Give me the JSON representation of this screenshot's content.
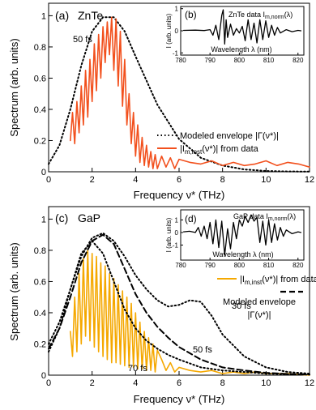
{
  "chart_data": [
    {
      "panel": "(a)",
      "material": "ZnTe",
      "type": "line",
      "xlabel": "Frequency ν* (THz)",
      "ylabel": "Spectrum (arb. units)",
      "xlim": [
        0,
        12
      ],
      "ylim": [
        0,
        1.08
      ],
      "xticks": [
        0,
        2,
        4,
        6,
        8,
        10,
        12
      ],
      "yticks": [
        0,
        0.2,
        0.4,
        0.6,
        0.8,
        1
      ],
      "grid": false,
      "legend_position": "center-right",
      "annotations": [
        "50 fs"
      ],
      "series": [
        {
          "name": "Modeled envelope |Γ(ν*)|",
          "style": "dotted",
          "color": "#000000",
          "x": [
            0,
            0.5,
            1,
            1.5,
            2,
            2.5,
            3,
            3.5,
            4,
            5,
            6,
            7,
            8,
            9,
            10,
            11,
            12
          ],
          "y": [
            0.05,
            0.17,
            0.4,
            0.68,
            0.9,
            0.99,
            0.99,
            0.9,
            0.74,
            0.43,
            0.21,
            0.09,
            0.04,
            0.015,
            0.005,
            0.002,
            0.001
          ]
        },
        {
          "name": "|I m,inst(ν*)| from data",
          "style": "solid",
          "color": "#f2501d",
          "x": [
            1,
            1.1,
            1.2,
            1.3,
            1.4,
            1.5,
            1.6,
            1.7,
            1.8,
            1.9,
            2,
            2.1,
            2.2,
            2.3,
            2.4,
            2.5,
            2.6,
            2.7,
            2.8,
            2.9,
            3,
            3.1,
            3.2,
            3.3,
            3.4,
            3.5,
            3.6,
            3.7,
            3.8,
            3.9,
            4,
            4.1,
            4.2,
            4.3,
            4.4,
            4.5,
            4.6,
            4.7,
            4.8,
            4.9,
            5,
            5.2,
            5.4,
            5.6,
            5.8,
            6,
            6.5,
            7,
            7.5,
            8,
            8.5,
            9,
            9.5,
            10,
            10.5,
            11,
            11.5,
            12
          ],
          "y": [
            0.2,
            0.38,
            0.18,
            0.45,
            0.25,
            0.55,
            0.3,
            0.65,
            0.35,
            0.72,
            0.45,
            0.82,
            0.52,
            0.88,
            0.6,
            0.93,
            0.7,
            0.96,
            0.75,
            0.99,
            0.65,
            0.98,
            0.55,
            0.9,
            0.42,
            0.72,
            0.3,
            0.5,
            0.18,
            0.38,
            0.1,
            0.3,
            0.06,
            0.22,
            0.04,
            0.17,
            0.03,
            0.13,
            0.02,
            0.11,
            0.02,
            0.1,
            0.03,
            0.09,
            0.02,
            0.08,
            0.06,
            0.05,
            0.07,
            0.04,
            0.06,
            0.04,
            0.05,
            0.07,
            0.04,
            0.06,
            0.05,
            0.03
          ]
        }
      ]
    },
    {
      "panel": "(b)",
      "type": "line",
      "inset": true,
      "title": "ZnTe data I m,norm(λ)",
      "xlabel": "Wavelength λ (nm)",
      "ylabel": "I (arb. units)",
      "xlim": [
        780,
        822
      ],
      "ylim": [
        -1.1,
        1.1
      ],
      "xticks": [
        780,
        790,
        800,
        810,
        820
      ],
      "yticks": [
        -1,
        0,
        1
      ],
      "series": [
        {
          "name": "",
          "color": "#000000",
          "x": [
            781,
            785,
            788,
            790,
            791,
            792,
            793,
            794,
            794.5,
            795,
            795.5,
            796,
            797,
            798,
            799,
            800,
            801,
            802,
            803,
            804,
            805,
            806,
            807,
            808,
            809,
            810,
            811,
            812,
            813,
            814,
            816,
            818,
            820,
            821
          ],
          "y": [
            0.02,
            0.03,
            0.01,
            0.05,
            -0.2,
            0.25,
            -0.4,
            0.7,
            0.95,
            -0.6,
            0.5,
            -0.3,
            0.3,
            -0.2,
            0.1,
            -0.1,
            0.2,
            -0.45,
            0.5,
            -0.4,
            0.35,
            -0.55,
            0.5,
            -0.4,
            0.45,
            -0.3,
            0.25,
            -0.2,
            0.15,
            -0.1,
            0.05,
            -0.04,
            0.02,
            0.0
          ]
        }
      ]
    },
    {
      "panel": "(c)",
      "material": "GaP",
      "type": "line",
      "xlabel": "Frequency ν* (THz)",
      "ylabel": "Spectrum (arb. units)",
      "xlim": [
        0,
        12
      ],
      "ylim": [
        0,
        1.08
      ],
      "xticks": [
        0,
        2,
        4,
        6,
        8,
        10,
        12
      ],
      "yticks": [
        0,
        0.2,
        0.4,
        0.6,
        0.8,
        1
      ],
      "grid": false,
      "legend_position": "center-right",
      "annotations": [
        "30 fs",
        "50 fs",
        "70 fs"
      ],
      "series": [
        {
          "name": "|I m,inst(ν*)| from data",
          "style": "solid",
          "color": "#f5a800",
          "x": [
            1,
            1.1,
            1.2,
            1.3,
            1.4,
            1.5,
            1.6,
            1.7,
            1.8,
            1.9,
            2,
            2.1,
            2.2,
            2.3,
            2.4,
            2.5,
            2.6,
            2.7,
            2.8,
            2.9,
            3,
            3.1,
            3.2,
            3.3,
            3.4,
            3.5,
            3.6,
            3.7,
            3.8,
            3.9,
            4,
            4.1,
            4.2,
            4.3,
            4.4,
            4.5,
            4.6,
            4.7,
            4.8,
            4.9,
            5,
            5.2,
            5.4,
            5.6,
            5.8,
            6,
            6.5,
            7,
            7.5,
            8,
            8.5,
            9,
            9.5,
            10,
            11,
            12
          ],
          "y": [
            0.28,
            0.12,
            0.5,
            0.15,
            0.65,
            0.2,
            0.75,
            0.25,
            0.8,
            0.22,
            0.78,
            0.18,
            0.76,
            0.15,
            0.72,
            0.12,
            0.7,
            0.1,
            0.65,
            0.08,
            0.62,
            0.08,
            0.58,
            0.07,
            0.54,
            0.06,
            0.5,
            0.05,
            0.46,
            0.05,
            0.4,
            0.04,
            0.34,
            0.04,
            0.28,
            0.03,
            0.24,
            0.03,
            0.2,
            0.02,
            0.16,
            0.1,
            0.03,
            0.08,
            0.02,
            0.05,
            0.03,
            0.02,
            0.03,
            0.01,
            0.02,
            0.01,
            0.02,
            0.01,
            0.01,
            0.0
          ]
        },
        {
          "name": "Modeled envelope |Γ(ν*)|",
          "style": "dashed",
          "color": "#000000",
          "x": [
            0,
            0.5,
            1,
            1.5,
            2,
            2.5,
            3,
            3.5,
            4,
            4.5,
            5,
            5.5,
            6,
            7,
            8,
            9,
            10,
            11,
            12
          ],
          "y": [
            0.17,
            0.3,
            0.5,
            0.72,
            0.86,
            0.9,
            0.84,
            0.68,
            0.52,
            0.4,
            0.31,
            0.24,
            0.18,
            0.1,
            0.05,
            0.03,
            0.015,
            0.008,
            0.004
          ]
        },
        {
          "name": "30 fs",
          "style": "dotted",
          "color": "#000000",
          "x": [
            0,
            0.5,
            1,
            1.5,
            2,
            2.5,
            3,
            3.5,
            4,
            4.5,
            5,
            5.5,
            6,
            6.5,
            7,
            7.5,
            8,
            9,
            10,
            11,
            12
          ],
          "y": [
            0.2,
            0.34,
            0.55,
            0.76,
            0.88,
            0.91,
            0.86,
            0.76,
            0.64,
            0.55,
            0.48,
            0.44,
            0.45,
            0.48,
            0.47,
            0.38,
            0.26,
            0.12,
            0.05,
            0.02,
            0.01
          ]
        },
        {
          "name": "70 fs",
          "style": "dotted",
          "color": "#000000",
          "x": [
            0,
            0.5,
            1,
            1.5,
            2,
            2.5,
            3,
            3.5,
            4,
            4.5,
            5,
            5.5,
            6,
            7,
            8,
            9,
            10,
            12
          ],
          "y": [
            0.15,
            0.3,
            0.55,
            0.78,
            0.86,
            0.78,
            0.6,
            0.42,
            0.3,
            0.22,
            0.17,
            0.13,
            0.1,
            0.05,
            0.03,
            0.02,
            0.01,
            0.003
          ]
        }
      ]
    },
    {
      "panel": "(d)",
      "type": "line",
      "inset": true,
      "title": "GaP data I m,norm(λ)",
      "xlabel": "Wavelength λ (nm)",
      "ylabel": "I (arb. units)",
      "xlim": [
        780,
        822
      ],
      "ylim": [
        -2.2,
        1.8
      ],
      "xticks": [
        780,
        790,
        800,
        810,
        820
      ],
      "yticks": [
        -1,
        0,
        1
      ],
      "series": [
        {
          "name": "",
          "color": "#000000",
          "x": [
            781,
            783,
            785,
            786,
            787,
            788,
            789,
            790,
            791,
            792,
            793,
            794,
            795,
            796,
            797,
            798,
            799,
            800,
            801,
            802,
            803,
            804,
            805,
            806,
            807,
            808,
            809,
            810,
            811,
            812,
            813,
            814,
            815,
            816,
            818,
            820,
            821
          ],
          "y": [
            0.05,
            0.1,
            0.0,
            0.4,
            -0.3,
            0.5,
            -0.5,
            0.8,
            -0.9,
            1.0,
            -1.2,
            0.9,
            -1.8,
            0.3,
            -1.3,
            0.8,
            -0.5,
            1.0,
            0.5,
            1.3,
            0.8,
            1.4,
            0.9,
            1.2,
            -0.8,
            0.9,
            -1.0,
            1.0,
            -0.8,
            0.7,
            -0.6,
            0.4,
            -0.3,
            0.2,
            -0.1,
            0.05,
            0.0
          ]
        }
      ]
    }
  ],
  "panel_a": {
    "label": "(a)",
    "material": "ZnTe",
    "annotation": "50 fs",
    "legend": {
      "envelope": "Modeled envelope |Γ(ν*)|",
      "data_prefix": "|I",
      "data_sub": "m,inst",
      "data_suffix": "(ν*)| from data"
    }
  },
  "panel_b": {
    "label": "(b)",
    "title_prefix": "ZnTe data I",
    "title_sub": "m,norm",
    "title_suffix": "(λ)"
  },
  "panel_c": {
    "label": "(c)",
    "material": "GaP",
    "annotations": [
      "30 fs",
      "50 fs",
      "70 fs"
    ],
    "legend": {
      "data_prefix": "|I",
      "data_sub": "m,inst",
      "data_suffix": "(ν*)| from data",
      "envelope_line1": "Modeled envelope",
      "envelope_line2": "|Γ(ν*)|"
    }
  },
  "panel_d": {
    "label": "(d)",
    "title_prefix": "GaP data I",
    "title_sub": "m,norm",
    "title_suffix": "(λ)"
  },
  "colors": {
    "znte_data": "#f2501d",
    "gap_data": "#f5a800",
    "axis": "#000000"
  }
}
